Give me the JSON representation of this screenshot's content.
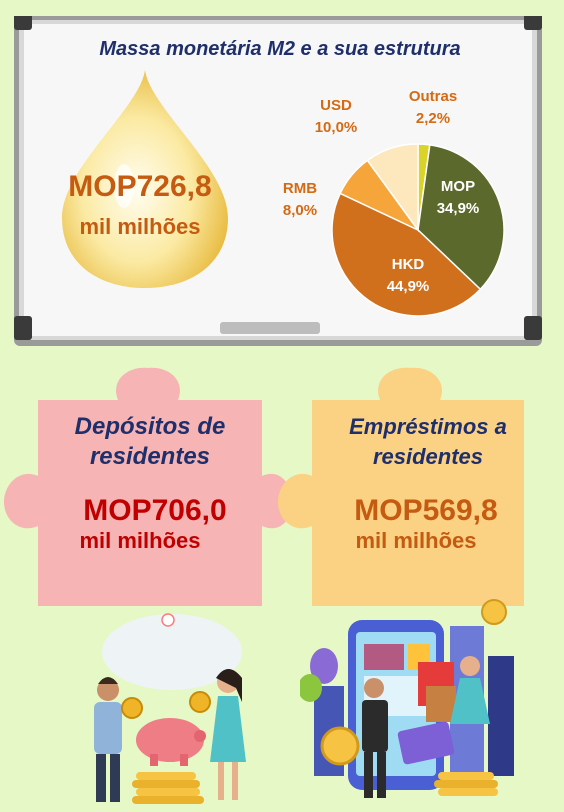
{
  "board": {
    "title": "Massa monetária M2 e a sua estrutura",
    "total_value": "MOP726,8",
    "total_unit": "mil milhões"
  },
  "pie": {
    "slices": [
      {
        "name": "MOP",
        "label": "34,9%",
        "value": 34.9,
        "color": "#5b6a2c"
      },
      {
        "name": "HKD",
        "label": "44,9%",
        "value": 44.9,
        "color": "#d0701d"
      },
      {
        "name": "RMB",
        "label": "8,0%",
        "value": 8.0,
        "color": "#f6a53b"
      },
      {
        "name": "USD",
        "label": "10,0%",
        "value": 10.0,
        "color": "#fde7bd"
      },
      {
        "name": "Outras",
        "label": "2,2%",
        "value": 2.2,
        "color": "#d9d32a"
      }
    ]
  },
  "deposits": {
    "title_line1": "Depósitos de",
    "title_line2": "residentes",
    "value": "MOP706,0",
    "unit": "mil milhões"
  },
  "loans": {
    "title_line1": "Empréstimos a",
    "title_line2": "residentes",
    "value": "MOP569,8",
    "unit": "mil milhões"
  },
  "colors": {
    "background": "#e6f8c6",
    "puzzle_pink": "#f7b4b4",
    "puzzle_yellow": "#fbd184",
    "title_blue": "#1f2f6b",
    "value_orange": "#c55a11",
    "deposit_red": "#c00000"
  },
  "icons": [
    "drop-icon",
    "puzzle-icon",
    "piggy-bank-icon",
    "coin-icon",
    "smartphone-icon",
    "shopping-bag-icon"
  ]
}
